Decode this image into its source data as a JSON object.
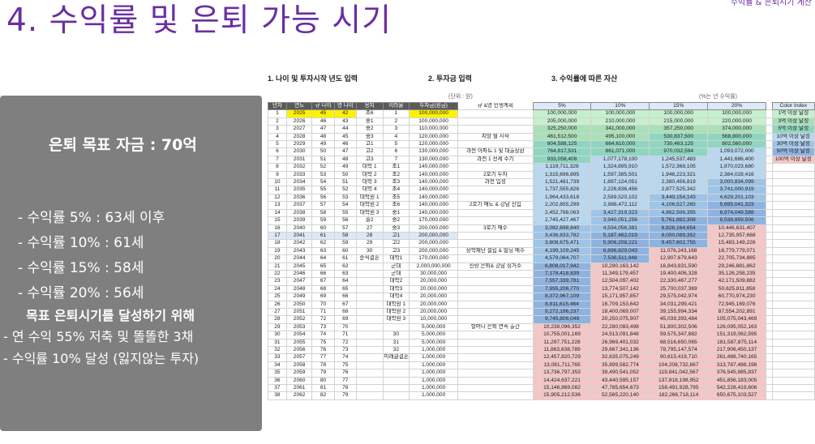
{
  "title": "4. 수익률 및 은퇴 가능 시기",
  "top_right": "수익률 & 은퇴시기 계산",
  "summary": {
    "goal": "은퇴 목표 자금 : 70억",
    "rates": [
      "- 수익률 5% : 63세 이후",
      "- 수익률 10% : 61세",
      "- 수익률 15% : 58세",
      "- 수익률 20% : 56세"
    ],
    "plan_title": "목표 은퇴시기를 달성하기 위해",
    "plan": [
      "- 연 수익 55% 저축 및 똘똘한 3채",
      "- 수익률 10% 달성 (잃지않는 투자)"
    ]
  },
  "sheet": {
    "section1": "1. 나이 및 투자시작 년도 입력",
    "section2": "2. 투자금 입력",
    "section3": "3. 수익률에 따른 자산",
    "unit_note": "(단위 : 원)",
    "rate_note": "(%는 년 수익률)",
    "headers": [
      "년차",
      "연도",
      "규 나이",
      "영 나이",
      "응지",
      "이라율",
      "투자금(원금)",
      "규 &영 인생계획",
      "5%",
      "10%",
      "15%",
      "20%",
      "Color Index"
    ],
    "legend": [
      "1억 이상 달성",
      "3억 이상 달성",
      "5억 이상 달성",
      "10억 이상 달성",
      "30억 이상 달성",
      "50억 이상 달성",
      "100억 이상 달성"
    ],
    "rows": [
      [
        "1",
        "2025",
        "45",
        "42",
        "초6",
        "1",
        "100,000,000",
        "",
        "100,000,000",
        "100,000,000",
        "100,000,000",
        "100,000,000"
      ],
      [
        "2",
        "2026",
        "46",
        "43",
        "중1",
        "2",
        "100,000,000",
        "",
        "205,000,000",
        "210,000,000",
        "215,000,000",
        "220,000,000"
      ],
      [
        "3",
        "2027",
        "47",
        "44",
        "중2",
        "3",
        "110,000,000",
        "",
        "325,250,000",
        "341,000,000",
        "357,250,000",
        "374,000,000"
      ],
      [
        "4",
        "2028",
        "48",
        "45",
        "중3",
        "4",
        "120,000,000",
        "지방 월 시작",
        "461,512,500",
        "495,100,000",
        "530,837,500",
        "568,800,000"
      ],
      [
        "5",
        "2029",
        "49",
        "46",
        "고1",
        "5",
        "120,000,000",
        "",
        "604,588,125",
        "664,610,000",
        "730,463,125",
        "802,560,000"
      ],
      [
        "6",
        "2030",
        "50",
        "47",
        "고2",
        "6",
        "130,000,000",
        "과천 아파트 1 및 대출상환",
        "764,817,531",
        "861,071,000",
        "970,032,594",
        "1,093,072,000"
      ],
      [
        "7",
        "2031",
        "51",
        "48",
        "고3",
        "7",
        "130,000,000",
        "과천 1 전세 주기",
        "933,058,408",
        "1,077,178,100",
        "1,245,537,483",
        "1,441,686,400"
      ],
      [
        "8",
        "2032",
        "52",
        "49",
        "대학 1",
        "초1",
        "140,000,000",
        "",
        "1,119,711,328",
        "1,324,895,910",
        "1,572,368,105",
        "1,870,023,680"
      ],
      [
        "9",
        "2033",
        "53",
        "50",
        "대학 2",
        "초2",
        "140,000,000",
        "2호기 투자",
        "1,315,696,895",
        "1,597,385,501",
        "1,948,223,321",
        "2,384,028,416"
      ],
      [
        "10",
        "2034",
        "54",
        "51",
        "대학 3",
        "초3",
        "140,000,000",
        "과천 입성",
        "1,521,481,739",
        "1,897,124,051",
        "2,380,456,819",
        "3,000,834,099"
      ],
      [
        "11",
        "2035",
        "55",
        "52",
        "대학 4",
        "초4",
        "140,000,000",
        "",
        "1,737,555,826",
        "2,226,836,456",
        "2,877,525,342",
        "3,741,000,919"
      ],
      [
        "12",
        "2036",
        "56",
        "53",
        "대학원 1",
        "초5",
        "140,000,000",
        "",
        "1,964,433,618",
        "2,589,520,102",
        "3,449,154,143",
        "4,629,201,103"
      ],
      [
        "13",
        "2037",
        "57",
        "54",
        "대학원 2",
        "초6",
        "140,000,000",
        "2호기 매도 & 강남 진입",
        "2,202,655,299",
        "2,988,472,112",
        "4,106,527,265",
        "5,695,041,323"
      ],
      [
        "14",
        "2038",
        "58",
        "55",
        "대학원 3",
        "중1",
        "140,000,000",
        "",
        "2,452,788,063",
        "3,427,319,323",
        "4,862,506,355",
        "6,974,049,588"
      ],
      [
        "15",
        "2039",
        "59",
        "56",
        "졸2",
        "중2",
        "170,000,000",
        "",
        "2,745,427,467",
        "3,940,051,256",
        "5,761,882,308",
        "8,538,859,506"
      ],
      [
        "16",
        "2040",
        "60",
        "57",
        "27",
        "중3",
        "200,000,000",
        "3호기 매수",
        "3,082,698,840",
        "4,534,056,381",
        "6,826,164,654",
        "10,446,631,407"
      ],
      [
        "17",
        "2041",
        "61",
        "58",
        "28",
        "고1",
        "200,000,000",
        "",
        "3,436,833,782",
        "5,187,462,019",
        "8,050,089,352",
        "12,735,957,688"
      ],
      [
        "18",
        "2042",
        "62",
        "59",
        "29",
        "고2",
        "200,000,000",
        "",
        "3,808,675,471",
        "5,906,208,221",
        "9,457,602,755",
        "15,483,149,226"
      ],
      [
        "19",
        "2043",
        "63",
        "60",
        "30",
        "고3",
        "200,000,000",
        "장학재단 설립 & 빌딩 매수",
        "4,199,109,245",
        "6,696,829,043",
        "11,076,243,168",
        "18,779,779,071"
      ],
      [
        "20",
        "2044",
        "64",
        "61",
        "순직결혼",
        "대학1",
        "170,000,000",
        "",
        "4,579,064,707",
        "7,536,511,948",
        "12,907,679,643",
        "22,705,734,885"
      ],
      [
        "21",
        "2045",
        "65",
        "62",
        "",
        "군대",
        "2,000,000,000",
        "신랑 은퇴& 강남 싱거주",
        "6,808,017,942",
        "10,290,163,142",
        "16,843,831,590",
        "29,246,881,862"
      ],
      [
        "22",
        "2046",
        "66",
        "63",
        "",
        "군대",
        "30,000,000",
        "",
        "7,178,418,839",
        "11,349,179,457",
        "19,400,406,328",
        "35,126,258,235"
      ],
      [
        "23",
        "2047",
        "67",
        "64",
        "",
        "대학2",
        "20,000,000",
        "",
        "7,557,339,781",
        "12,504,097,402",
        "22,330,467,277",
        "42,171,509,882"
      ],
      [
        "24",
        "2048",
        "68",
        "65",
        "",
        "대학3",
        "20,000,000",
        "",
        "7,955,206,770",
        "13,774,507,142",
        "25,700,037,369",
        "50,625,811,858"
      ],
      [
        "25",
        "2049",
        "69",
        "66",
        "",
        "대학4",
        "20,000,000",
        "",
        "8,372,967,109",
        "15,171,957,857",
        "29,575,042,974",
        "60,770,974,230"
      ],
      [
        "26",
        "2050",
        "70",
        "67",
        "",
        "대학원 1",
        "20,000,000",
        "",
        "8,811,615,464",
        "16,709,153,642",
        "34,031,299,421",
        "72,945,169,076"
      ],
      [
        "27",
        "2051",
        "71",
        "68",
        "",
        "대학원 2",
        "20,000,000",
        "",
        "9,272,196,237",
        "18,400,069,007",
        "39,155,994,334",
        "87,554,202,891"
      ],
      [
        "28",
        "2052",
        "72",
        "69",
        "",
        "대학원 3",
        "10,000,000",
        "",
        "9,745,806,049",
        "20,250,075,907",
        "45,039,393,484",
        "105,075,043,469"
      ],
      [
        "29",
        "2053",
        "73",
        "70",
        "",
        "",
        "5,000,000",
        "할머니 은퇴 연속 출간",
        "10,238,096,352",
        "22,280,083,498",
        "51,800,302,506",
        "126,095,052,163"
      ],
      [
        "30",
        "2054",
        "74",
        "71",
        "",
        "30",
        "5,000,000",
        "",
        "10,755,001,169",
        "24,513,091,848",
        "59,575,347,882",
        "151,319,062,595"
      ],
      [
        "31",
        "2055",
        "75",
        "72",
        "",
        "31",
        "5,000,000",
        "",
        "11,297,751,228",
        "26,969,401,032",
        "68,516,650,065",
        "181,587,875,114"
      ],
      [
        "32",
        "2056",
        "76",
        "73",
        "",
        "32",
        "1,000,000",
        "",
        "11,863,638,789",
        "29,667,341,136",
        "78,795,147,574",
        "217,906,450,137"
      ],
      [
        "33",
        "2057",
        "77",
        "74",
        "",
        "미래클결혼",
        "1,000,000",
        "",
        "12,457,820,729",
        "32,635,075,249",
        "90,615,419,710",
        "261,488,740,165"
      ],
      [
        "34",
        "2058",
        "78",
        "75",
        "",
        "",
        "1,000,000",
        "",
        "13,081,711,765",
        "35,899,582,774",
        "104,208,732,667",
        "313,787,488,198"
      ],
      [
        "35",
        "2059",
        "79",
        "76",
        "",
        "",
        "1,000,000",
        "",
        "13,736,797,353",
        "39,490,541,052",
        "119,841,042,567",
        "376,545,985,837"
      ],
      [
        "36",
        "2060",
        "80",
        "77",
        "",
        "",
        "1,000,000",
        "",
        "14,424,637,221",
        "43,440,595,157",
        "137,818,198,952",
        "451,856,183,005"
      ],
      [
        "37",
        "2061",
        "81",
        "78",
        "",
        "",
        "1,000,000",
        "",
        "15,146,869,082",
        "47,785,654,673",
        "158,491,928,795",
        "542,228,419,606"
      ],
      [
        "38",
        "2062",
        "82",
        "79",
        "",
        "",
        "1,000,000",
        "",
        "15,905,212,536",
        "52,565,220,140",
        "182,266,718,114",
        "650,675,103,527"
      ]
    ]
  },
  "colors": {
    "title": "#6a2fa0",
    "panel": "#7f7f7f",
    "input_highlight": "#fff200",
    "tier_1e": "#c6efce",
    "tier_3e": "#a9e0b8",
    "tier_5e": "#8fd6c0",
    "tier_10e": "#b9d7ef",
    "tier_30e": "#9ec4e8",
    "tier_50e": "#8fb3e0",
    "tier_100e": "#f4c6c6"
  }
}
